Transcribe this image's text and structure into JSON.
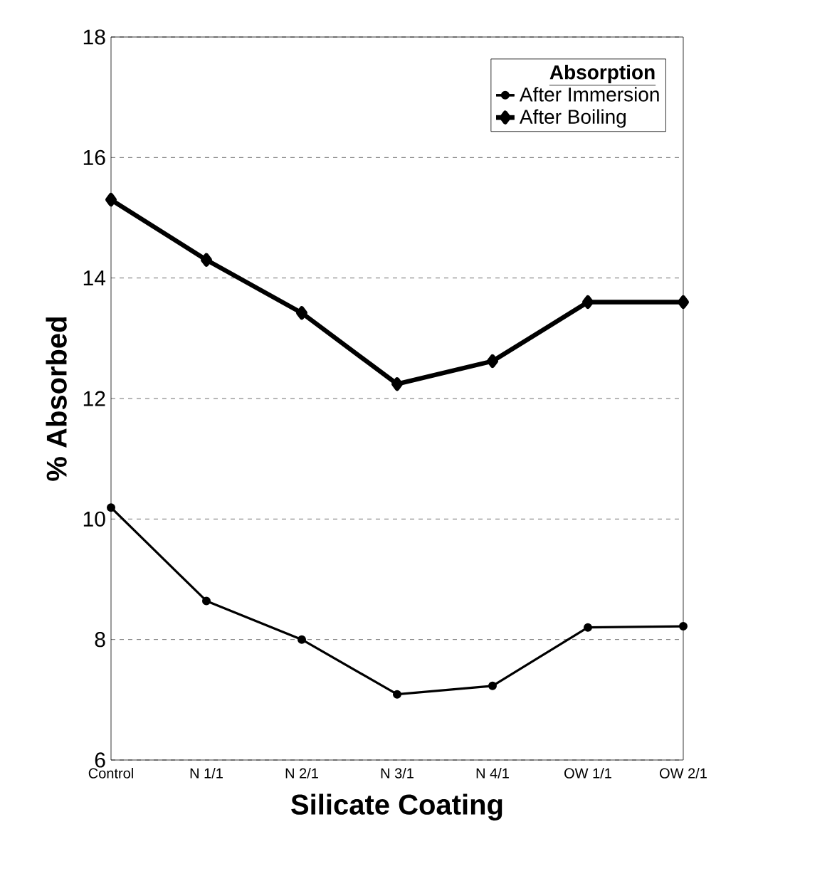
{
  "chart_data": {
    "type": "line",
    "xlabel": "Silicate Coating",
    "ylabel": "% Absorbed",
    "legend_title": "Absorption",
    "categories": [
      "Control",
      "N 1/1",
      "N 2/1",
      "N 3/1",
      "N 4/1",
      "OW 1/1",
      "OW 2/1"
    ],
    "series": [
      {
        "name": "After Immersion",
        "color": "#000000",
        "marker": "circle",
        "values": [
          10.19,
          8.64,
          8.0,
          7.09,
          7.23,
          8.2,
          8.22
        ]
      },
      {
        "name": "After Boiling",
        "color": "#000000",
        "marker": "diamond",
        "values": [
          15.3,
          14.3,
          13.42,
          12.24,
          12.62,
          13.6,
          13.6
        ]
      }
    ],
    "ylim": [
      6,
      18
    ],
    "yticks": [
      6,
      8,
      10,
      12,
      14,
      16,
      18
    ],
    "grid": "y",
    "legend": "top right",
    "line_style": "solid"
  }
}
